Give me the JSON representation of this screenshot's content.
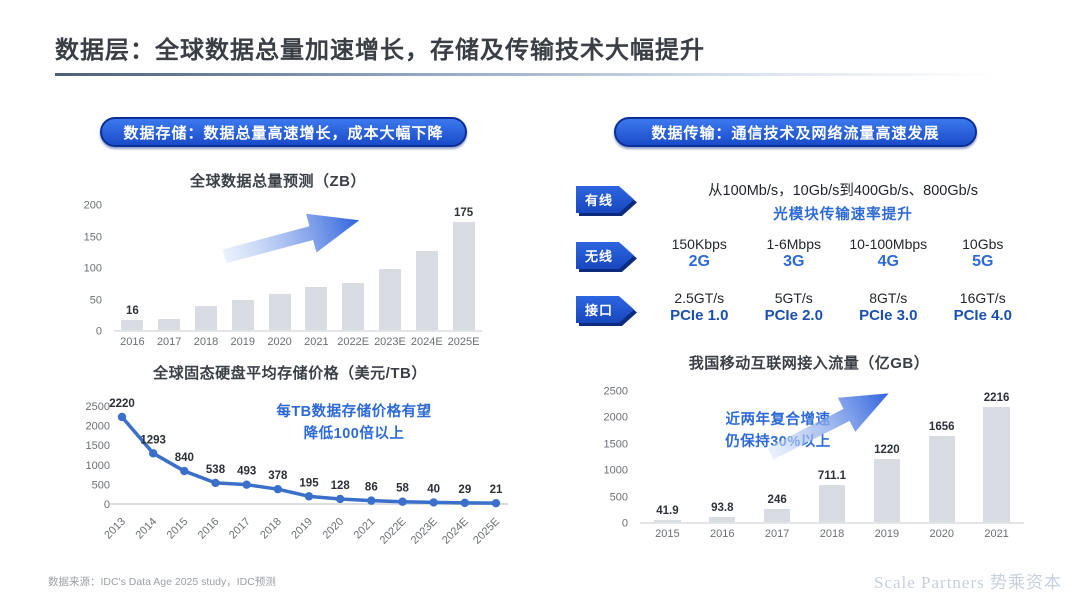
{
  "page": {
    "title": "数据层：全球数据总量加速增长，存储及传输技术大幅提升",
    "source": "数据来源：IDC's Data Age 2025 study，IDC预测",
    "watermark": "Scale Partners 势乘资本"
  },
  "left": {
    "pill": "数据存储：数据总量高速增长，成本大幅下降"
  },
  "right": {
    "pill": "数据传输：通信技术及网络流量高速发展",
    "rows": [
      {
        "tag": "有线",
        "line1": "从100Mb/s，10Gb/s到400Gb/s、800Gb/s",
        "line2": "光模块传输速率提升"
      },
      {
        "tag": "无线",
        "items": [
          {
            "top": "150Kbps",
            "bottom": "2G"
          },
          {
            "top": "1-6Mbps",
            "bottom": "3G"
          },
          {
            "top": "10-100Mbps",
            "bottom": "4G"
          },
          {
            "top": "10Gbs",
            "bottom": "5G"
          }
        ]
      },
      {
        "tag": "接口",
        "items": [
          {
            "top": "2.5GT/s",
            "bottom": "PCIe 1.0"
          },
          {
            "top": "5GT/s",
            "bottom": "PCIe 2.0"
          },
          {
            "top": "8GT/s",
            "bottom": "PCIe 3.0"
          },
          {
            "top": "16GT/s",
            "bottom": "PCIe 4.0"
          }
        ]
      }
    ]
  },
  "chart_data": [
    {
      "id": "global-data-volume",
      "type": "bar",
      "title": "全球数据总量预测（ZB）",
      "categories": [
        "2016",
        "2017",
        "2018",
        "2019",
        "2020",
        "2021",
        "2022E",
        "2023E",
        "2024E",
        "2025E"
      ],
      "values": [
        16,
        18,
        38,
        48,
        58,
        70,
        76,
        98,
        128,
        175
      ],
      "bar_labels": [
        "16",
        "",
        "",
        "",
        "",
        "",
        "",
        "",
        "",
        "175"
      ],
      "ylabel": "ZB",
      "ylim": [
        0,
        200
      ],
      "yticks": [
        0,
        50,
        100,
        150,
        200
      ],
      "grid": false,
      "bar_color": "#d9dce3"
    },
    {
      "id": "ssd-price",
      "type": "line",
      "title": "全球固态硬盘平均存储价格（美元/TB）",
      "categories": [
        "2013",
        "2014",
        "2015",
        "2016",
        "2017",
        "2018",
        "2019",
        "2020",
        "2021",
        "2022E",
        "2023E",
        "2024E",
        "2025E"
      ],
      "values": [
        2220,
        1293,
        840,
        538,
        493,
        378,
        195,
        128,
        86,
        58,
        40,
        29,
        21
      ],
      "ylabel": "美元/TB",
      "ylim": [
        0,
        2500
      ],
      "yticks": [
        0,
        500,
        1000,
        1500,
        2000,
        2500
      ],
      "grid": false,
      "line_color": "#3a70c9",
      "annotation": "每TB数据存储价格有望\n降低100倍以上"
    },
    {
      "id": "china-mobile-traffic",
      "type": "bar",
      "title": "我国移动互联网接入流量（亿GB）",
      "categories": [
        "2015",
        "2016",
        "2017",
        "2018",
        "2019",
        "2020",
        "2021"
      ],
      "values": [
        41.9,
        93.8,
        246,
        711.1,
        1220,
        1656,
        2216
      ],
      "bar_labels": [
        "41.9",
        "93.8",
        "246",
        "711.1",
        "1220",
        "1656",
        "2216"
      ],
      "ylabel": "亿GB",
      "ylim": [
        0,
        2500
      ],
      "yticks": [
        0,
        500,
        1000,
        1500,
        2000,
        2500
      ],
      "grid": false,
      "bar_color": "#d9dce3",
      "annotation": "近两年复合增速\n仍保持30%以上"
    }
  ],
  "colors": {
    "accent_blue": "#2e6ad6",
    "pill_blue": "#1a4bc9",
    "pill_border": "#0c2f97",
    "navy_label": "#1b50b0",
    "bar_gray": "#d9dce3",
    "line_blue": "#3a70c9",
    "title_gray": "#3a3e45",
    "tick_gray": "#6b6f75"
  }
}
